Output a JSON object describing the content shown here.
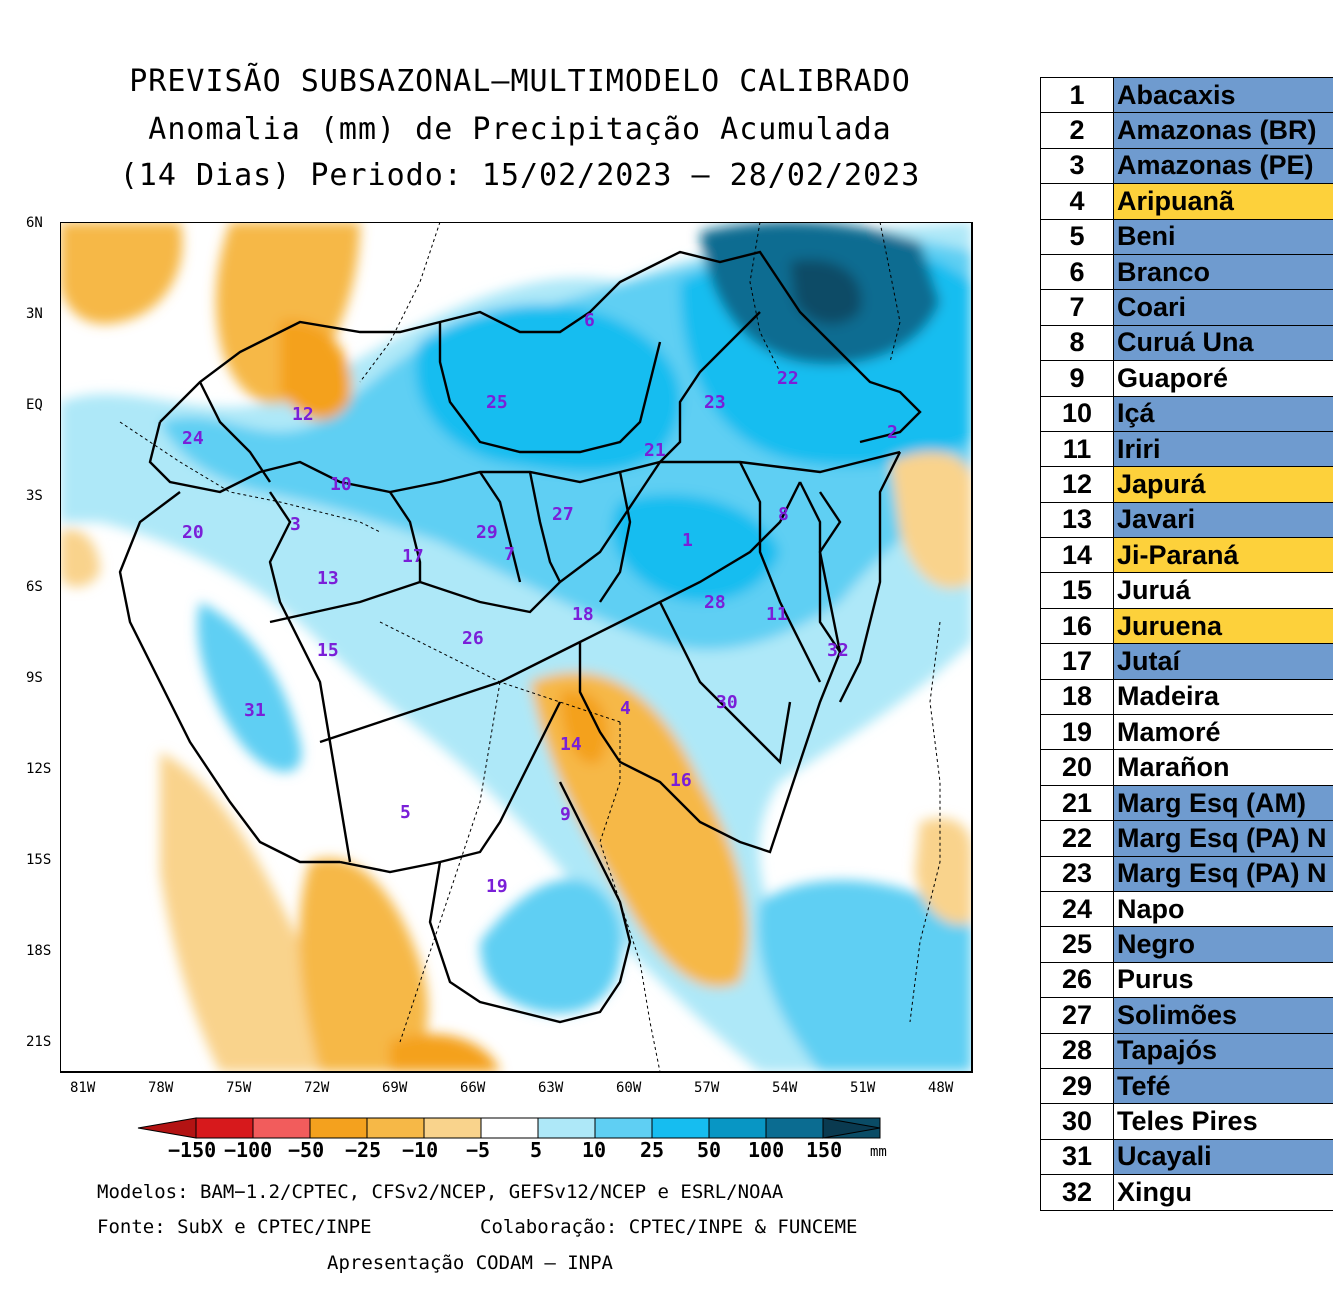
{
  "title": {
    "line1": "PREVISÃO SUBSAZONAL—MULTIMODELO CALIBRADO",
    "line2": "Anomalia (mm) de Precipitação Acumulada",
    "line3": "(14 Dias) Periodo: 15/02/2023 — 28/02/2023"
  },
  "axes": {
    "lat_labels": [
      "6N",
      "3N",
      "EQ",
      "3S",
      "6S",
      "9S",
      "12S",
      "15S",
      "18S",
      "21S"
    ],
    "lon_labels": [
      "81W",
      "78W",
      "75W",
      "72W",
      "69W",
      "66W",
      "63W",
      "60W",
      "57W",
      "54W",
      "51W",
      "48W"
    ]
  },
  "colorbar": {
    "labels": [
      "−150",
      "−100",
      "−50",
      "−25",
      "−10",
      "−5",
      "5",
      "10",
      "25",
      "50",
      "100",
      "150"
    ],
    "unit": "mm",
    "colors": [
      "#d7191c",
      "#f25c5c",
      "#f4a11e",
      "#f6b847",
      "#f9d38c",
      "#ffffff",
      "#aee8f8",
      "#5fcff3",
      "#16bdf0",
      "#0896c4",
      "#0b6c91",
      "#0a4c66"
    ]
  },
  "footer": {
    "models": "Modelos: BAM−1.2/CPTEC, CFSv2/NCEP, GEFSv12/NCEP e ESRL/NOAA",
    "source": "Fonte: SubX e CPTEC/INPE",
    "collab": "Colaboração: CPTEC/INPE & FUNCEME",
    "presentation": "Apresentação CODAM — INPA"
  },
  "regions_on_map": [
    "1",
    "2",
    "3",
    "4",
    "5",
    "6",
    "7",
    "8",
    "9",
    "10",
    "11",
    "12",
    "13",
    "14",
    "15",
    "16",
    "17",
    "18",
    "19",
    "20",
    "21",
    "22",
    "23",
    "24",
    "25",
    "26",
    "27",
    "28",
    "29",
    "30",
    "31",
    "32"
  ],
  "legend": [
    {
      "num": "1",
      "name": "Abacaxis",
      "status": "blue"
    },
    {
      "num": "2",
      "name": "Amazonas (BR)",
      "status": "blue"
    },
    {
      "num": "3",
      "name": "Amazonas (PE)",
      "status": "blue"
    },
    {
      "num": "4",
      "name": "Aripuanã",
      "status": "yellow"
    },
    {
      "num": "5",
      "name": "Beni",
      "status": "blue"
    },
    {
      "num": "6",
      "name": "Branco",
      "status": "blue"
    },
    {
      "num": "7",
      "name": "Coari",
      "status": "blue"
    },
    {
      "num": "8",
      "name": "Curuá Una",
      "status": "blue"
    },
    {
      "num": "9",
      "name": "Guaporé",
      "status": "white"
    },
    {
      "num": "10",
      "name": "Içá",
      "status": "blue"
    },
    {
      "num": "11",
      "name": "Iriri",
      "status": "blue"
    },
    {
      "num": "12",
      "name": "Japurá",
      "status": "yellow"
    },
    {
      "num": "13",
      "name": "Javari",
      "status": "blue"
    },
    {
      "num": "14",
      "name": "Ji-Paraná",
      "status": "yellow"
    },
    {
      "num": "15",
      "name": "Juruá",
      "status": "white"
    },
    {
      "num": "16",
      "name": "Juruena",
      "status": "yellow"
    },
    {
      "num": "17",
      "name": "Jutaí",
      "status": "blue"
    },
    {
      "num": "18",
      "name": "Madeira",
      "status": "white"
    },
    {
      "num": "19",
      "name": "Mamoré",
      "status": "white"
    },
    {
      "num": "20",
      "name": "Marañon",
      "status": "white"
    },
    {
      "num": "21",
      "name": "Marg Esq (AM)",
      "status": "blue"
    },
    {
      "num": "22",
      "name": "Marg Esq (PA) N",
      "status": "blue"
    },
    {
      "num": "23",
      "name": "Marg Esq (PA) N",
      "status": "blue"
    },
    {
      "num": "24",
      "name": "Napo",
      "status": "white"
    },
    {
      "num": "25",
      "name": "Negro",
      "status": "blue"
    },
    {
      "num": "26",
      "name": "Purus",
      "status": "white"
    },
    {
      "num": "27",
      "name": "Solimões",
      "status": "blue"
    },
    {
      "num": "28",
      "name": "Tapajós",
      "status": "blue"
    },
    {
      "num": "29",
      "name": "Tefé",
      "status": "blue"
    },
    {
      "num": "30",
      "name": "Teles Pires",
      "status": "white"
    },
    {
      "num": "31",
      "name": "Ucayali",
      "status": "blue"
    },
    {
      "num": "32",
      "name": "Xingu",
      "status": "white"
    }
  ]
}
